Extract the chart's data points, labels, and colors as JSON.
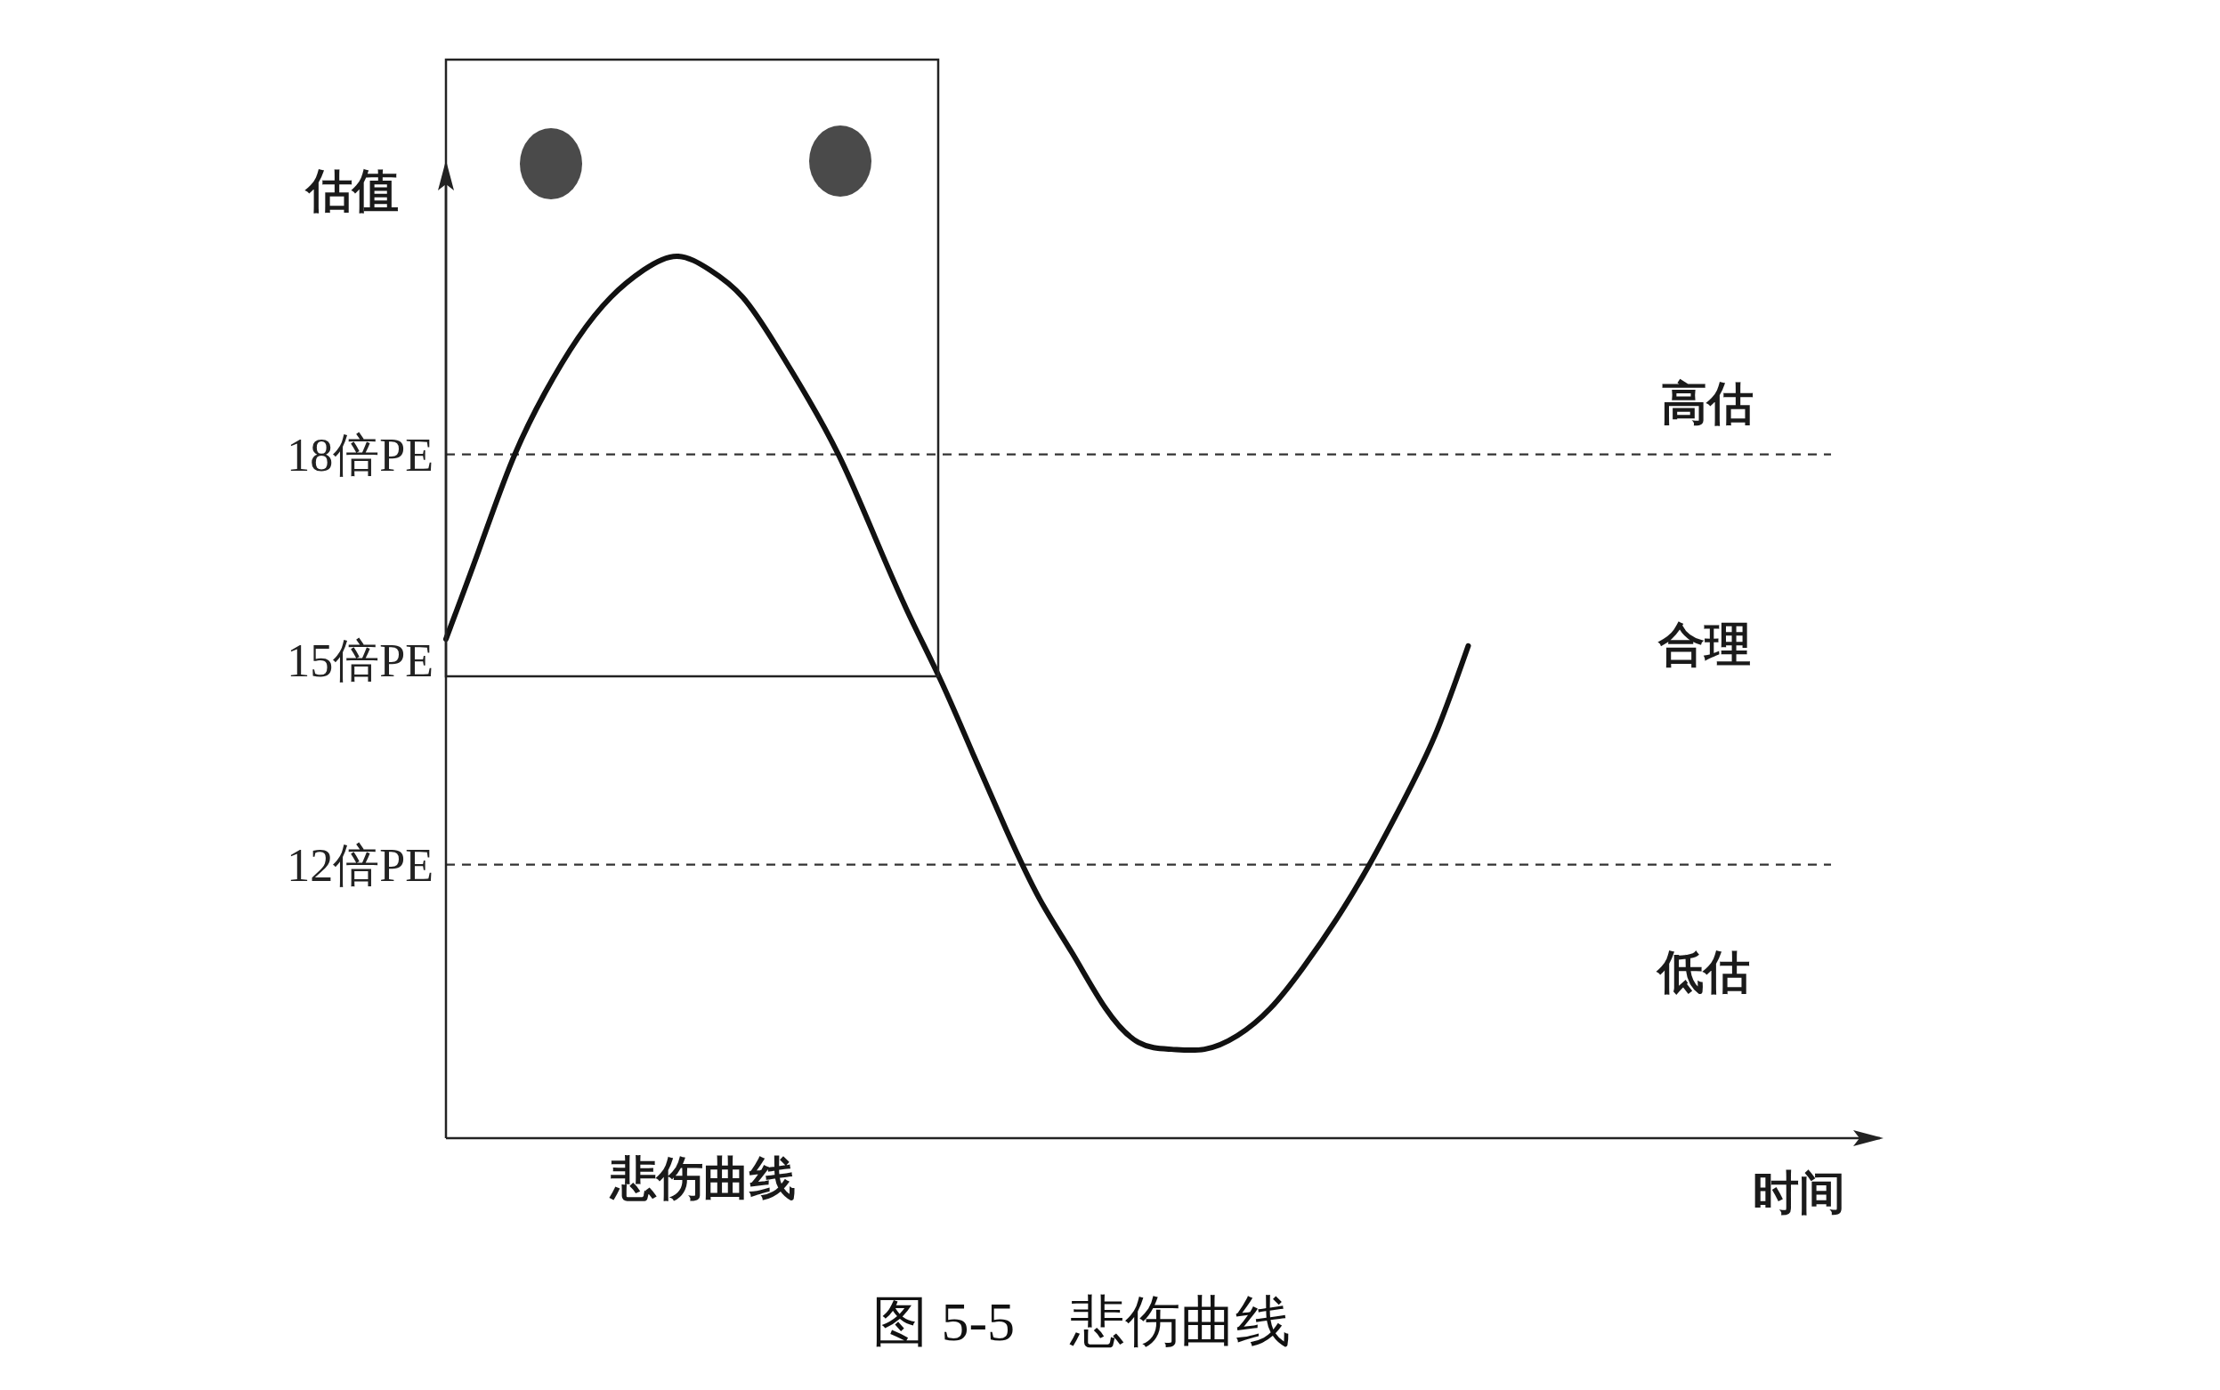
{
  "chart_data": {
    "type": "line",
    "title": "图 5-5　悲伤曲线",
    "xlabel": "时间",
    "ylabel": "估值",
    "annotations": [
      "悲伤曲线",
      "高估",
      "合理",
      "低估"
    ],
    "categories": [
      null,
      null,
      null,
      null,
      null,
      null,
      null,
      null,
      null,
      null,
      null,
      null,
      null,
      null,
      null,
      null,
      null,
      null,
      null,
      null,
      null,
      null,
      null,
      null,
      null,
      null,
      null,
      null,
      null,
      null,
      null,
      null,
      null,
      null,
      null,
      null,
      null,
      null,
      null,
      null,
      null,
      null,
      null
    ],
    "values": [
      15.3,
      16.6,
      17.9,
      18.9,
      19.7,
      20.3,
      20.7,
      20.9,
      20.7,
      20.3,
      19.6,
      18.8,
      17.9,
      16.8,
      15.7,
      14.7,
      13.6,
      12.5,
      11.5,
      10.7,
      9.9,
      9.4,
      9.3,
      9.3,
      9.5,
      9.9,
      10.5,
      11.2,
      12.0,
      12.9,
      13.9,
      15.2,
      null,
      null,
      null,
      null,
      null,
      null,
      null,
      null,
      null,
      null,
      null
    ],
    "color": "#111111",
    "marker": "none",
    "line_style": "solid",
    "ylim": [
      8,
      22.2
    ],
    "yticks": [
      {
        "value": 12,
        "label": "12倍PE"
      },
      {
        "value": 15,
        "label": "15倍PE"
      },
      {
        "value": 18,
        "label": "18倍PE"
      }
    ],
    "ref_lines": [
      {
        "axis": "y",
        "value": 18,
        "line_style": "dashed",
        "color": "#333333"
      },
      {
        "axis": "y",
        "value": 12,
        "line_style": "dashed",
        "color": "#333333"
      }
    ],
    "tick_labels": "y"
  }
}
